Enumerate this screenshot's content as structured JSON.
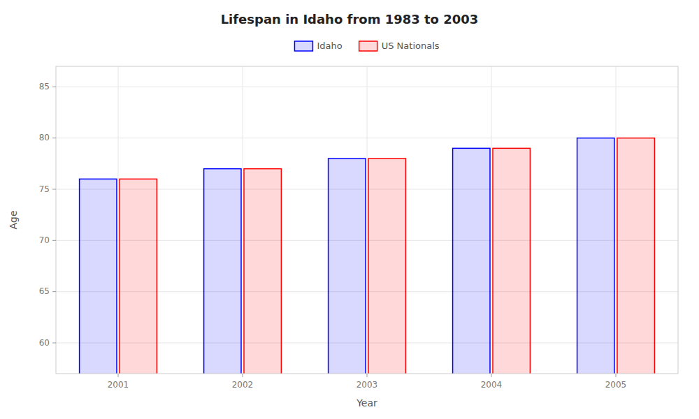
{
  "chart_data": {
    "type": "bar",
    "title": "Lifespan in Idaho from 1983 to 2003",
    "xlabel": "Year",
    "ylabel": "Age",
    "categories": [
      "2001",
      "2002",
      "2003",
      "2004",
      "2005"
    ],
    "series": [
      {
        "name": "Idaho",
        "color": "#0000ff",
        "values": [
          76,
          77,
          78,
          79,
          80
        ]
      },
      {
        "name": "US Nationals",
        "color": "#ff0000",
        "values": [
          76,
          77,
          78,
          79,
          80
        ]
      }
    ],
    "ylim": [
      57,
      87
    ],
    "yticks": [
      60,
      65,
      70,
      75,
      80,
      85
    ],
    "grid": true,
    "legend": "top"
  }
}
